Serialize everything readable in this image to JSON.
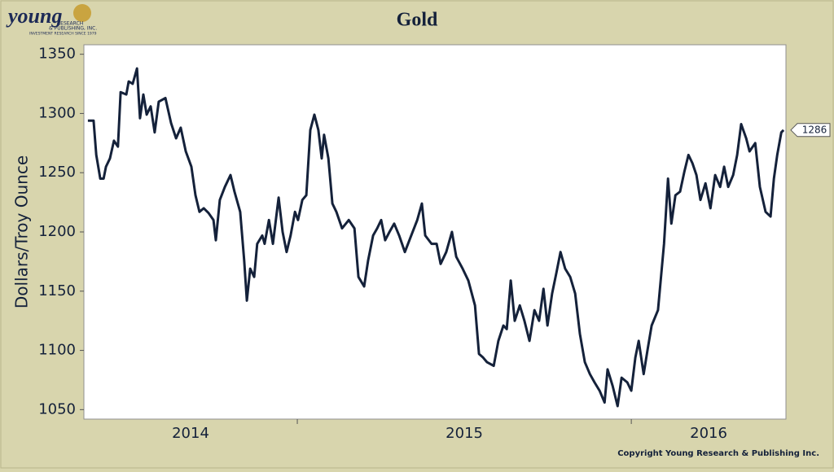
{
  "logo": {
    "name": "young",
    "line1": "RESEARCH",
    "line2": "& PUBLISHING, INC.",
    "tagline": "INVESTMENT RESEARCH SINCE 1979"
  },
  "chart_data": {
    "type": "line",
    "title": "Gold",
    "y_label": "Dollars/Troy Ounce",
    "copyright": "Copyright Young Research & Publishing Inc.",
    "x": [
      2014.373,
      2014.39,
      2014.398,
      2014.41,
      2014.42,
      2014.427,
      2014.439,
      2014.451,
      2014.463,
      2014.471,
      2014.488,
      2014.495,
      2014.507,
      2014.52,
      2014.529,
      2014.539,
      2014.549,
      2014.561,
      2014.573,
      2014.585,
      2014.605,
      2014.622,
      2014.637,
      2014.651,
      2014.666,
      2014.683,
      2014.695,
      2014.707,
      2014.72,
      2014.734,
      2014.749,
      2014.756,
      2014.768,
      2014.783,
      2014.8,
      2014.812,
      2014.829,
      2014.841,
      2014.849,
      2014.859,
      2014.871,
      2014.88,
      2014.895,
      2014.902,
      2014.915,
      2014.927,
      2014.944,
      2014.956,
      2014.968,
      2014.98,
      2014.993,
      2015.002,
      2015.015,
      2015.027,
      2015.039,
      2015.051,
      2015.063,
      2015.073,
      2015.08,
      2015.093,
      2015.105,
      2015.117,
      2015.134,
      2015.154,
      2015.171,
      2015.183,
      2015.2,
      2015.212,
      2015.227,
      2015.239,
      2015.251,
      2015.263,
      2015.276,
      2015.29,
      2015.305,
      2015.322,
      2015.341,
      2015.359,
      2015.373,
      2015.383,
      2015.402,
      2015.417,
      2015.429,
      2015.446,
      2015.463,
      2015.476,
      2015.495,
      2015.512,
      2015.532,
      2015.544,
      2015.556,
      2015.568,
      2015.588,
      2015.602,
      2015.617,
      2015.627,
      2015.639,
      2015.651,
      2015.666,
      2015.68,
      2015.695,
      2015.71,
      2015.724,
      2015.737,
      2015.749,
      2015.763,
      2015.776,
      2015.788,
      2015.802,
      2015.817,
      2015.832,
      2015.846,
      2015.861,
      2015.876,
      2015.89,
      2015.905,
      2015.92,
      2015.929,
      2015.944,
      2015.959,
      2015.971,
      2015.988,
      2016.0,
      2016.012,
      2016.022,
      2016.037,
      2016.049,
      2016.061,
      2016.08,
      2016.098,
      2016.11,
      2016.12,
      2016.132,
      2016.146,
      2016.159,
      2016.171,
      2016.183,
      2016.195,
      2016.207,
      2016.222,
      2016.237,
      2016.251,
      2016.266,
      2016.278,
      2016.29,
      2016.305,
      2016.317,
      2016.329,
      2016.344,
      2016.354,
      2016.371,
      2016.385,
      2016.402,
      2016.417,
      2016.427,
      2016.437,
      2016.449,
      2016.456
    ],
    "series": [
      {
        "color": "#14213a",
        "values": [
          1294,
          1294,
          1265,
          1245,
          1245,
          1255,
          1262,
          1277,
          1272,
          1318,
          1316,
          1327,
          1325,
          1338,
          1296,
          1316,
          1299,
          1306,
          1284,
          1310,
          1313,
          1292,
          1279,
          1288,
          1268,
          1255,
          1231,
          1217,
          1220,
          1216,
          1210,
          1193,
          1227,
          1238,
          1248,
          1234,
          1217,
          1176,
          1142,
          1169,
          1162,
          1190,
          1197,
          1190,
          1210,
          1190,
          1229,
          1200,
          1183,
          1197,
          1217,
          1210,
          1227,
          1231,
          1286,
          1299,
          1286,
          1262,
          1282,
          1262,
          1224,
          1217,
          1203,
          1210,
          1203,
          1162,
          1154,
          1176,
          1197,
          1203,
          1210,
          1193,
          1200,
          1207,
          1197,
          1183,
          1197,
          1210,
          1224,
          1197,
          1190,
          1190,
          1173,
          1183,
          1200,
          1179,
          1169,
          1159,
          1138,
          1097,
          1094,
          1090,
          1087,
          1108,
          1121,
          1118,
          1159,
          1125,
          1138,
          1125,
          1108,
          1134,
          1125,
          1152,
          1121,
          1148,
          1166,
          1183,
          1169,
          1162,
          1148,
          1114,
          1090,
          1080,
          1073,
          1066,
          1056,
          1084,
          1070,
          1053,
          1077,
          1073,
          1066,
          1094,
          1108,
          1080,
          1101,
          1121,
          1134,
          1190,
          1245,
          1207,
          1231,
          1234,
          1251,
          1265,
          1258,
          1248,
          1227,
          1241,
          1220,
          1248,
          1238,
          1255,
          1238,
          1248,
          1265,
          1291,
          1279,
          1268,
          1275,
          1238,
          1217,
          1213,
          1245,
          1265,
          1284,
          1286
        ]
      }
    ],
    "end_label": 1286,
    "xlim": [
      2014.361,
      2016.463
    ],
    "xticks": [
      2014,
      2015,
      2016
    ],
    "ylim": [
      1042,
      1358
    ],
    "yticks": [
      1050,
      1100,
      1150,
      1200,
      1250,
      1300,
      1350
    ]
  }
}
